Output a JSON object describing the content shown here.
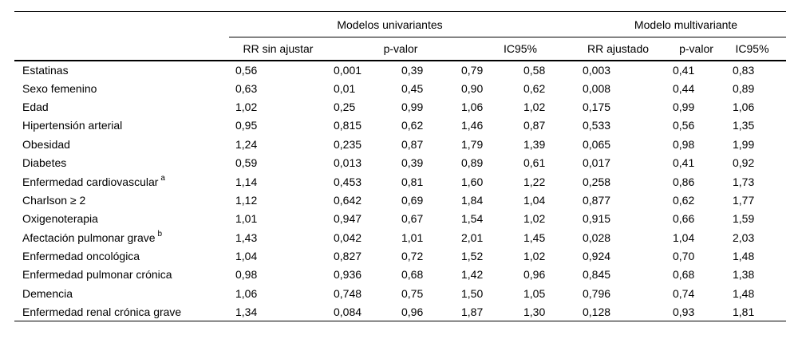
{
  "table": {
    "groups": {
      "univariate_label": "Modelos univariantes",
      "multivariate_label": "Modelo multivariante"
    },
    "columns": {
      "rr_unadjusted": "RR sin ajustar",
      "p_value_univariate": "p-valor",
      "ci95_univariate": "IC95%",
      "rr_adjusted": "RR ajustado",
      "p_value_multivariate": "p-valor",
      "ci95_multivariate": "IC95%"
    },
    "rows": [
      {
        "label": "Estatinas",
        "sup": "",
        "values": [
          "0,56",
          "0,001",
          "0,39",
          "0,79",
          "0,58",
          "0,003",
          "0,41",
          "0,83"
        ]
      },
      {
        "label": "Sexo femenino",
        "sup": "",
        "values": [
          "0,63",
          "0,01",
          "0,45",
          "0,90",
          "0,62",
          "0,008",
          "0,44",
          "0,89"
        ]
      },
      {
        "label": "Edad",
        "sup": "",
        "values": [
          "1,02",
          "0,25",
          "0,99",
          "1,06",
          "1,02",
          "0,175",
          "0,99",
          "1,06"
        ]
      },
      {
        "label": "Hipertensión arterial",
        "sup": "",
        "values": [
          "0,95",
          "0,815",
          "0,62",
          "1,46",
          "0,87",
          "0,533",
          "0,56",
          "1,35"
        ]
      },
      {
        "label": "Obesidad",
        "sup": "",
        "values": [
          "1,24",
          "0,235",
          "0,87",
          "1,79",
          "1,39",
          "0,065",
          "0,98",
          "1,99"
        ]
      },
      {
        "label": "Diabetes",
        "sup": "",
        "values": [
          "0,59",
          "0,013",
          "0,39",
          "0,89",
          "0,61",
          "0,017",
          "0,41",
          "0,92"
        ]
      },
      {
        "label": "Enfermedad cardiovascular",
        "sup": "a",
        "values": [
          "1,14",
          "0,453",
          "0,81",
          "1,60",
          "1,22",
          "0,258",
          "0,86",
          "1,73"
        ]
      },
      {
        "label": "Charlson ≥ 2",
        "sup": "",
        "values": [
          "1,12",
          "0,642",
          "0,69",
          "1,84",
          "1,04",
          "0,877",
          "0,62",
          "1,77"
        ]
      },
      {
        "label": "Oxigenoterapia",
        "sup": "",
        "values": [
          "1,01",
          "0,947",
          "0,67",
          "1,54",
          "1,02",
          "0,915",
          "0,66",
          "1,59"
        ]
      },
      {
        "label": "Afectación pulmonar grave",
        "sup": "b",
        "values": [
          "1,43",
          "0,042",
          "1,01",
          "2,01",
          "1,45",
          "0,028",
          "1,04",
          "2,03"
        ]
      },
      {
        "label": "Enfermedad oncológica",
        "sup": "",
        "values": [
          "1,04",
          "0,827",
          "0,72",
          "1,52",
          "1,02",
          "0,924",
          "0,70",
          "1,48"
        ]
      },
      {
        "label": "Enfermedad pulmonar crónica",
        "sup": "",
        "values": [
          "0,98",
          "0,936",
          "0,68",
          "1,42",
          "0,96",
          "0,845",
          "0,68",
          "1,38"
        ]
      },
      {
        "label": "Demencia",
        "sup": "",
        "values": [
          "1,06",
          "0,748",
          "0,75",
          "1,50",
          "1,05",
          "0,796",
          "0,74",
          "1,48"
        ]
      },
      {
        "label": "Enfermedad renal crónica grave",
        "sup": "",
        "values": [
          "1,34",
          "0,084",
          "0,96",
          "1,87",
          "1,30",
          "0,128",
          "0,93",
          "1,81"
        ]
      }
    ]
  }
}
